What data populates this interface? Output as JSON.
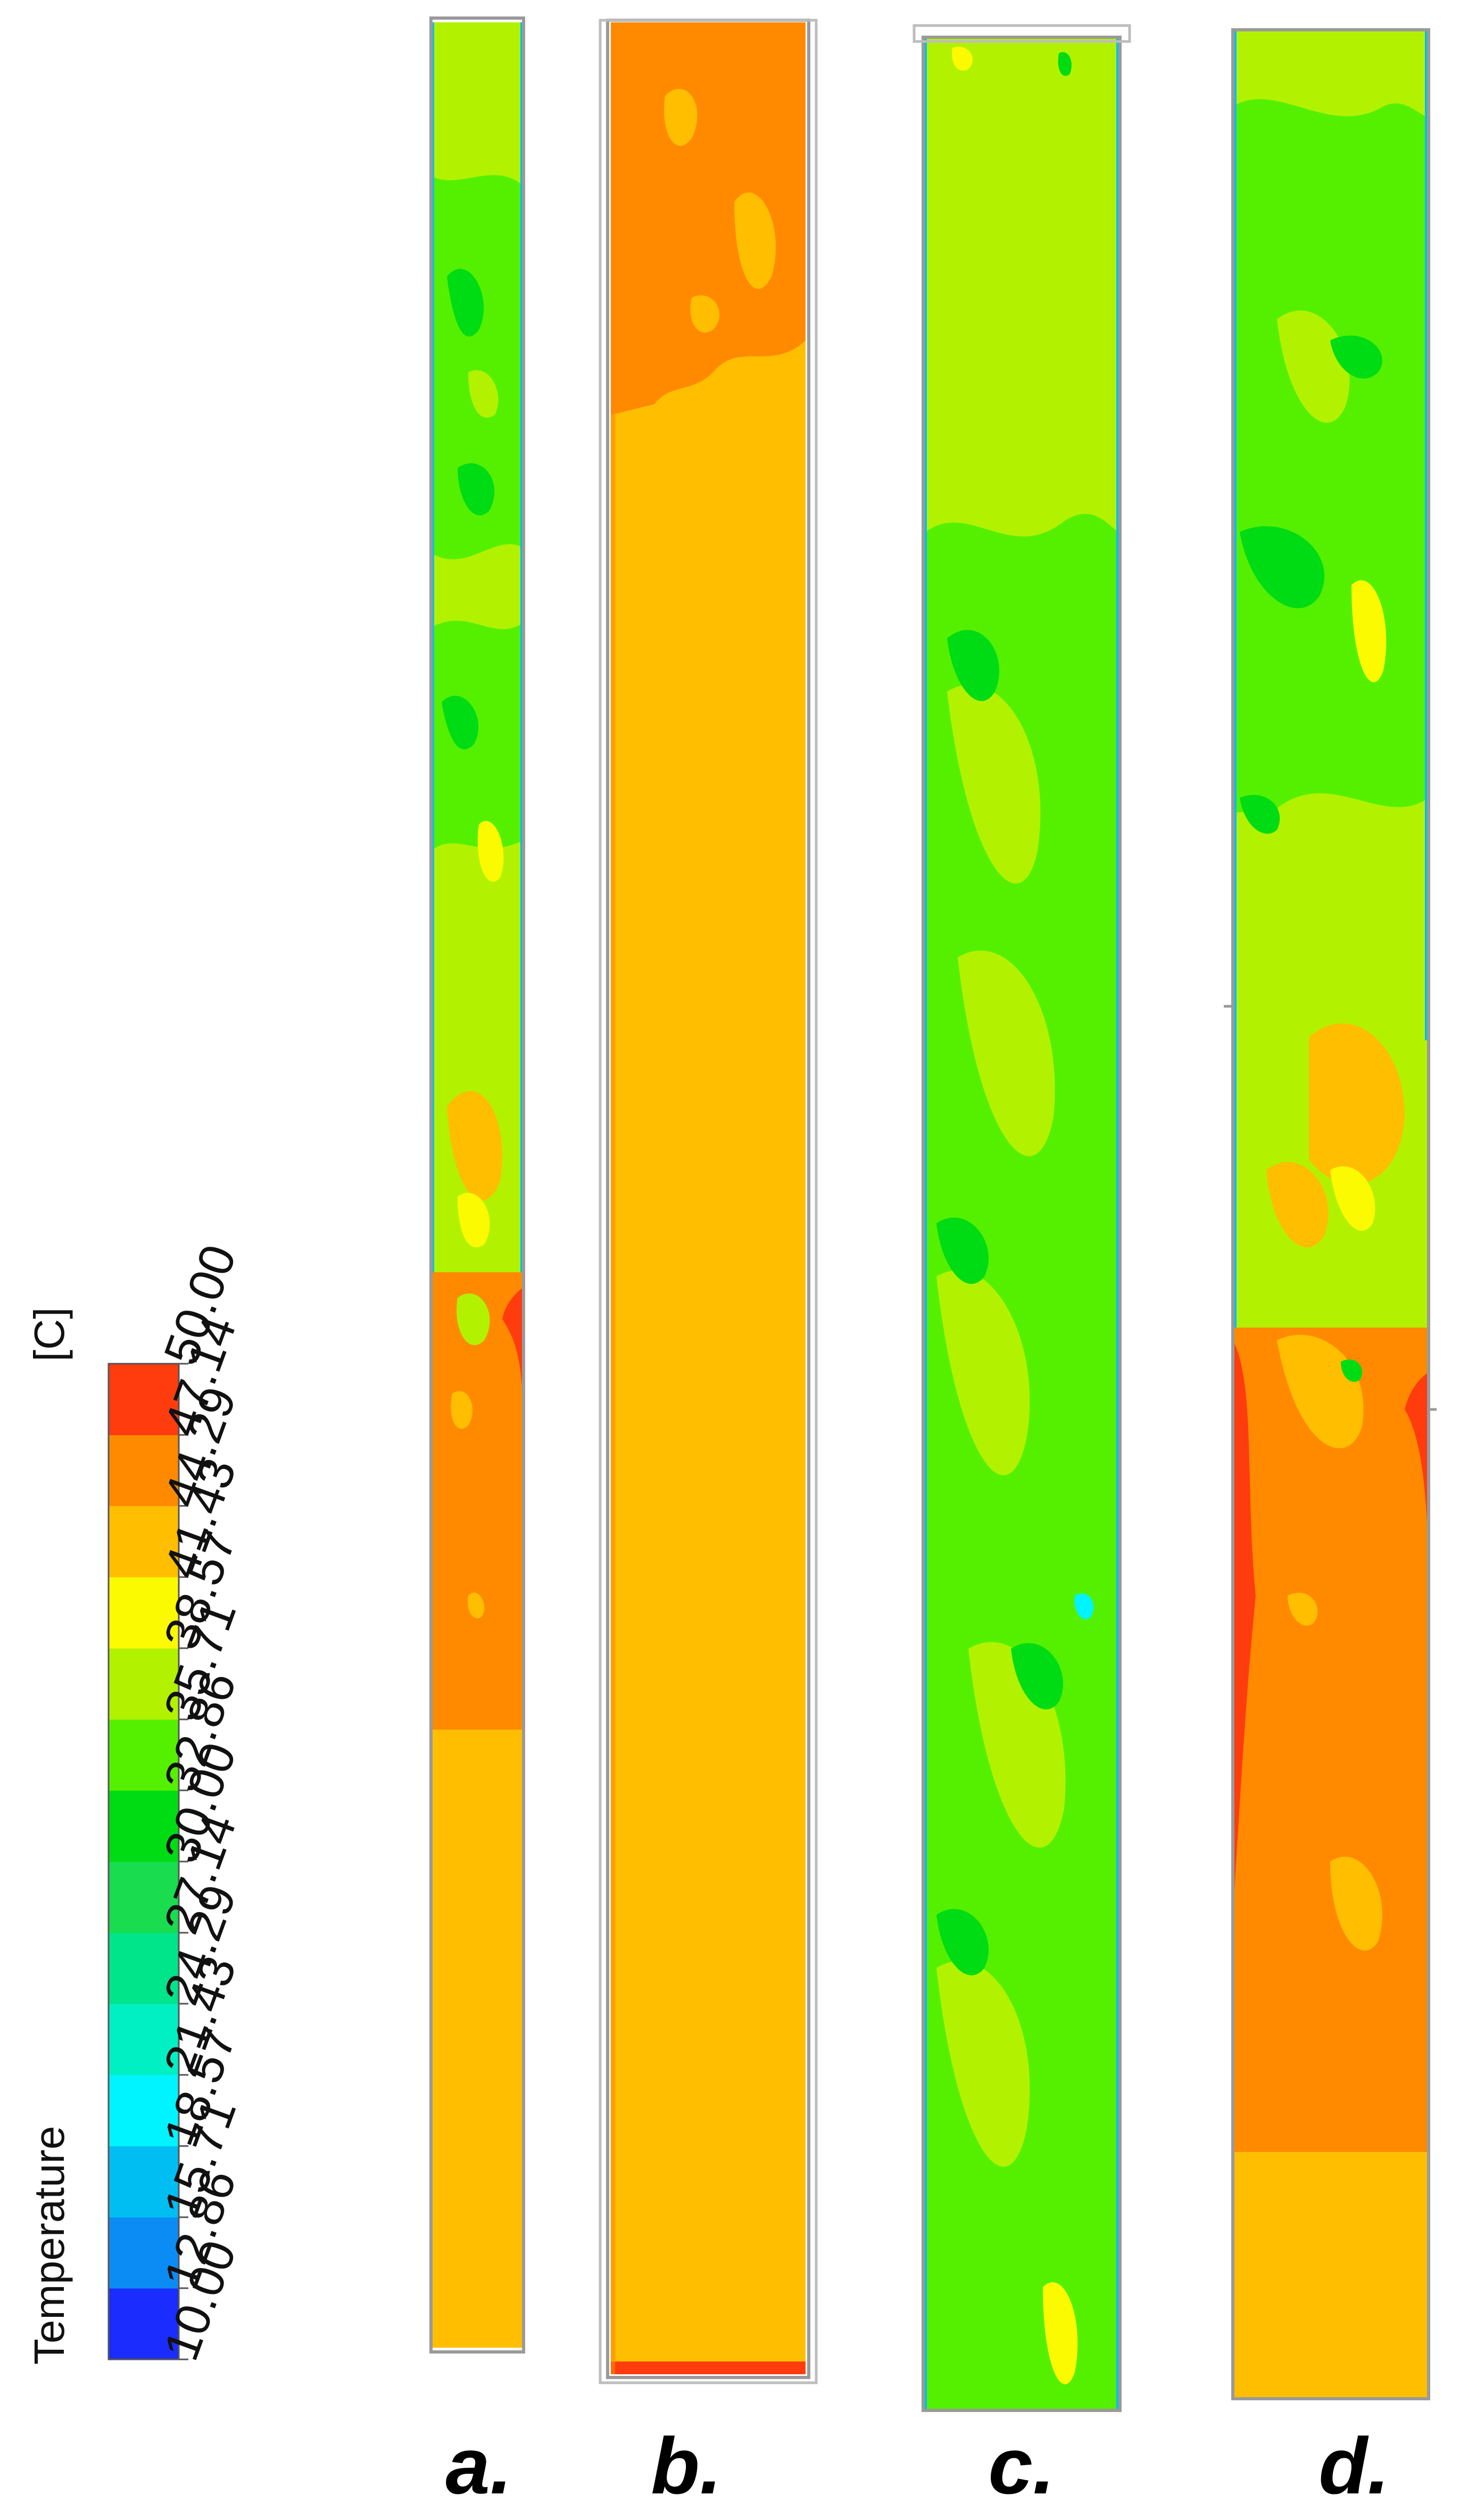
{
  "legend": {
    "variable": "Temperature",
    "unit": "[C]",
    "tick_labels": [
      "10.00",
      "12.86",
      "15.71",
      "18.57",
      "21.43",
      "24.29",
      "27.14",
      "30.00",
      "32.86",
      "35.71",
      "38.57",
      "41.43",
      "44.29",
      "47.14",
      "50.00"
    ],
    "bands": [
      {
        "from": 10.0,
        "to": 12.86,
        "color": "#1a2cff"
      },
      {
        "from": 12.86,
        "to": 15.71,
        "color": "#0b8cf5"
      },
      {
        "from": 15.71,
        "to": 18.57,
        "color": "#00bef2"
      },
      {
        "from": 18.57,
        "to": 21.43,
        "color": "#00f4ff"
      },
      {
        "from": 21.43,
        "to": 24.29,
        "color": "#00f0c4"
      },
      {
        "from": 24.29,
        "to": 27.14,
        "color": "#00e48a"
      },
      {
        "from": 27.14,
        "to": 30.0,
        "color": "#19dc4e"
      },
      {
        "from": 30.0,
        "to": 32.86,
        "color": "#00dc14"
      },
      {
        "from": 32.86,
        "to": 35.71,
        "color": "#55f000"
      },
      {
        "from": 35.71,
        "to": 38.57,
        "color": "#b2f200"
      },
      {
        "from": 38.57,
        "to": 41.43,
        "color": "#fcfa00"
      },
      {
        "from": 41.43,
        "to": 44.29,
        "color": "#ffbe00"
      },
      {
        "from": 44.29,
        "to": 47.14,
        "color": "#ff8a00"
      },
      {
        "from": 47.14,
        "to": 50.0,
        "color": "#ff3c0e"
      }
    ]
  },
  "panels": [
    {
      "label": "a."
    },
    {
      "label": "b."
    },
    {
      "label": "c."
    },
    {
      "label": "d."
    }
  ],
  "colors": {
    "hot": "#ff8a00",
    "warm": "#ffbe00",
    "mid": "#b2f200",
    "cool": "#55f000",
    "cooler": "#00dc14",
    "cyan": "#00f4ff",
    "red": "#ff3c0e",
    "yellow": "#fcfa00"
  }
}
